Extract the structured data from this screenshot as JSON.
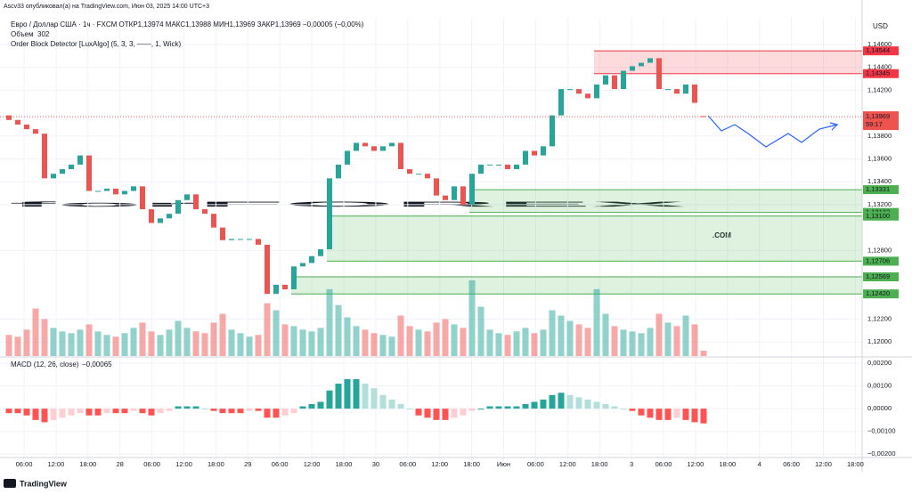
{
  "chart_data": {
    "type": "candlestick",
    "publisher": "Ascv33 опубликовал(а) на TradingView.com, Июн 03, 2025 14:00 UTC+3",
    "symbol_line": "Евро / Доллар США · 1ч · FXCM   ОТКР1,13974   МАКС1,13988   МИН1,13969   ЗАКР1,13969   −0,00005 (−0,00%)",
    "volume_title": "Объем",
    "indicator": "Order Block Detector [LuxAlgo] (5, 3, 3, ——, 1, Wick)",
    "macd_title": "MACD (12, 26, close)",
    "macd_legend_value": "−0,00065",
    "currency": "USD",
    "brand": "TradingView",
    "watermark": [
      "forFOREX",
      ".COM"
    ],
    "x_labels": [
      "06:00",
      "12:00",
      "18:00",
      "28",
      "06:00",
      "12:00",
      "18:00",
      "29",
      "06:00",
      "12:00",
      "18:00",
      "30",
      "06:00",
      "12:00",
      "18:00",
      "Июн",
      "06:00",
      "12:00",
      "18:00",
      "3",
      "06:00",
      "12:00",
      "18:00",
      "4",
      "06:00",
      "12:00",
      "18:00"
    ],
    "up_color": "#26a69a",
    "down_color": "#ef5350",
    "open": [
      1.1398,
      1.1394,
      1.139,
      1.1386,
      1.1382,
      1.1343,
      1.1347,
      1.1351,
      1.1355,
      1.1363,
      1.1332,
      1.1332,
      1.1334,
      1.1329,
      1.1332,
      1.1336,
      1.1316,
      1.1304,
      1.1308,
      1.1312,
      1.1324,
      1.1329,
      1.1316,
      1.1312,
      1.13,
      1.1289,
      1.129,
      1.129,
      1.129,
      1.1285,
      1.1242,
      1.125,
      1.1246,
      1.1266,
      1.1269,
      1.1275,
      1.1281,
      1.1343,
      1.1355,
      1.1367,
      1.1374,
      1.1371,
      1.1367,
      1.1371,
      1.1374,
      1.1351,
      1.1347,
      1.1347,
      1.1343,
      1.1328,
      1.1324,
      1.1336,
      1.132,
      1.1347,
      1.1355,
      1.1355,
      1.1355,
      1.1351,
      1.1355,
      1.1367,
      1.1363,
      1.1371,
      1.1398,
      1.1421,
      1.1421,
      1.1417,
      1.1413,
      1.1425,
      1.1433,
      1.1421,
      1.1437,
      1.1441,
      1.1444,
      1.1448,
      1.1421,
      1.1421,
      1.1417,
      1.1425,
      1.13974
    ],
    "close": [
      1.1394,
      1.139,
      1.1386,
      1.1382,
      1.1343,
      1.1347,
      1.1351,
      1.1355,
      1.1363,
      1.1332,
      1.1332,
      1.1334,
      1.1329,
      1.1332,
      1.1336,
      1.1316,
      1.1304,
      1.1308,
      1.1312,
      1.1324,
      1.1329,
      1.1316,
      1.1312,
      1.13,
      1.1289,
      1.129,
      1.129,
      1.129,
      1.1285,
      1.1242,
      1.125,
      1.1246,
      1.1266,
      1.1269,
      1.1275,
      1.1281,
      1.1343,
      1.1355,
      1.1367,
      1.1374,
      1.1371,
      1.1367,
      1.1371,
      1.1374,
      1.1351,
      1.1347,
      1.1347,
      1.1343,
      1.1328,
      1.1324,
      1.1336,
      1.132,
      1.1347,
      1.1355,
      1.1355,
      1.1355,
      1.1351,
      1.1355,
      1.1367,
      1.1363,
      1.1371,
      1.1398,
      1.1421,
      1.1421,
      1.1417,
      1.1413,
      1.1425,
      1.1433,
      1.1421,
      1.1437,
      1.1441,
      1.1444,
      1.1448,
      1.1421,
      1.1421,
      1.1417,
      1.1425,
      1.1409,
      1.13969
    ],
    "volume": [
      1200,
      1100,
      1500,
      2700,
      2100,
      1600,
      1400,
      1300,
      1500,
      1800,
      1400,
      1200,
      1100,
      1300,
      1600,
      1900,
      1400,
      1200,
      1500,
      2000,
      1600,
      1400,
      1300,
      1900,
      2400,
      1500,
      1300,
      1100,
      1200,
      3000,
      2600,
      1800,
      1700,
      1500,
      1400,
      1600,
      3800,
      2900,
      2200,
      1700,
      1500,
      1300,
      1200,
      1100,
      2300,
      1700,
      1500,
      1400,
      1900,
      2100,
      1800,
      1600,
      4300,
      2800,
      1500,
      1300,
      1200,
      1400,
      1600,
      1300,
      1500,
      2600,
      2300,
      2000,
      1800,
      1600,
      3800,
      2400,
      1700,
      1500,
      1400,
      1300,
      1600,
      2400,
      1900,
      1700,
      2300,
      1800,
      302
    ],
    "macd": [
      -0.0002,
      -0.0002,
      -0.0003,
      -0.0005,
      -0.0006,
      -0.0005,
      -0.0004,
      -0.0003,
      -0.0002,
      -0.0003,
      -0.0003,
      -0.0002,
      -0.0002,
      -0.0002,
      -0.0001,
      -0.0002,
      -0.0003,
      -0.0002,
      -0.0001,
      0.0001,
      0.0001,
      0.0001,
      0,
      -0.0001,
      -0.0002,
      -0.0002,
      -0.0002,
      -0.0001,
      -0.0001,
      -0.0004,
      -0.0004,
      -0.0003,
      -0.0002,
      0.0001,
      0.0002,
      0.0003,
      0.0008,
      0.0011,
      0.0013,
      0.0013,
      0.0011,
      0.0009,
      0.0006,
      0.0004,
      0.0002,
      0,
      -0.0003,
      -0.0004,
      -0.0005,
      -0.0005,
      -0.0004,
      -0.0003,
      -0.0001,
      0,
      0.0001,
      0.0001,
      0.0001,
      0.0001,
      0.0002,
      0.0003,
      0.0004,
      0.0006,
      0.0007,
      0.0006,
      0.0005,
      0.0004,
      0.0003,
      0.0002,
      0.0001,
      0,
      -0.0001,
      -0.0003,
      -0.0004,
      -0.0005,
      -0.0005,
      -0.0004,
      -0.0005,
      -0.0006,
      -0.00065
    ],
    "ylim": [
      1.11877,
      1.14833
    ],
    "yticks": [
      {
        "value": 1.146,
        "label": "1,14600"
      },
      {
        "value": 1.144,
        "label": "1,14400"
      },
      {
        "value": 1.142,
        "label": "1,14200"
      },
      {
        "value": 1.138,
        "label": "1,13800"
      },
      {
        "value": 1.136,
        "label": "1,13600"
      },
      {
        "value": 1.134,
        "label": "1,13400"
      },
      {
        "value": 1.132,
        "label": "1,13200"
      },
      {
        "value": 1.128,
        "label": "1,12800"
      },
      {
        "value": 1.122,
        "label": "1,12200"
      },
      {
        "value": 1.12,
        "label": "1,12000"
      }
    ],
    "macd_ylim": [
      -0.00239,
      0.00224
    ],
    "macd_yticks": [
      {
        "value": 0.002,
        "label": "0,00200"
      },
      {
        "value": 0.001,
        "label": "0,00100"
      },
      {
        "value": 0,
        "label": "0,00000"
      },
      {
        "value": -0.001,
        "label": "−0,00100"
      },
      {
        "value": -0.002,
        "label": "−0,00200"
      }
    ],
    "zones": [
      {
        "from_index": 66,
        "color": "#f23645",
        "top": {
          "value": 1.14544,
          "label": "1,14544"
        },
        "bottom": {
          "value": 1.14345,
          "label": "1,14345"
        }
      },
      {
        "from_index": 52,
        "color": "#4caf50",
        "top": {
          "value": 1.13331,
          "label": "1,13331"
        },
        "bottom": {
          "value": 1.13132,
          "label": "1,13132"
        }
      },
      {
        "from_index": 36,
        "color": "#4caf50",
        "top": {
          "value": 1.131,
          "label": "1,13100"
        },
        "bottom": {
          "value": 1.12706,
          "label": "1,12706"
        }
      },
      {
        "from_index": 32,
        "color": "#4caf50",
        "top": {
          "value": 1.12569,
          "label": "1,12569"
        },
        "bottom": {
          "value": 1.1242,
          "label": "1,12420"
        }
      }
    ],
    "last_price": {
      "value": 1.13969,
      "label": "1,13969"
    },
    "countdown": "59:17"
  }
}
